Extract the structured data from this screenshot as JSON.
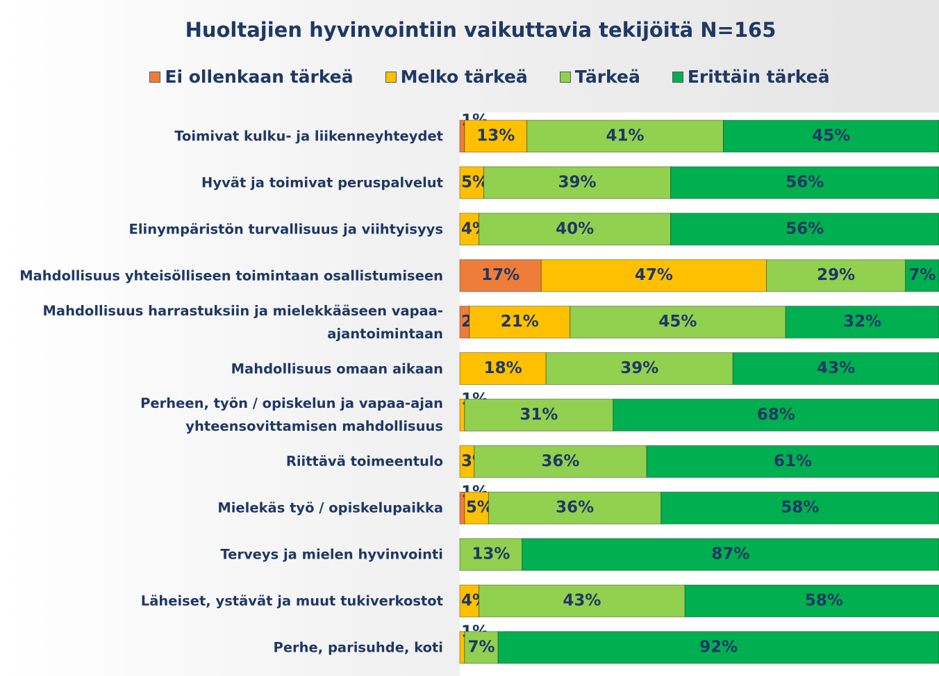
{
  "chart_data": {
    "type": "stacked_barh",
    "title": "Huoltajien hyvinvointiin vaikuttavia tekijöitä N=165",
    "categories": [
      "Toimivat kulku- ja liikenneyhteydet",
      "Hyvät ja toimivat peruspalvelut",
      "Elinympäristön turvallisuus ja viihtyisyys",
      "Mahdollisuus yhteisölliseen toimintaan osallistumiseen",
      "Mahdollisuus harrastuksiin ja mielekkääseen vapaa-ajantoimintaan",
      "Mahdollisuus omaan aikaan",
      "Perheen, työn / opiskelun ja vapaa-ajan yhteensovittamisen mahdollisuus",
      "Riittävä toimeentulo",
      "Mielekäs työ / opiskelupaikka",
      "Terveys ja mielen hyvinvointi",
      "Läheiset, ystävät ja muut tukiverkostot",
      "Perhe, parisuhde, koti"
    ],
    "series": [
      {
        "name": "Ei ollenkaan tärkeä",
        "color": "#ef7d3a",
        "values": [
          1,
          null,
          null,
          17,
          2,
          null,
          null,
          null,
          1,
          null,
          null,
          null
        ],
        "value_labels": [
          "1%",
          null,
          null,
          "17%",
          "2%",
          null,
          null,
          null,
          "1%",
          null,
          null,
          null
        ]
      },
      {
        "name": "Melko tärkeä",
        "color": "#ffc000",
        "values": [
          13,
          5,
          4,
          47,
          21,
          18,
          1,
          3,
          5,
          null,
          4,
          1
        ],
        "value_labels": [
          "13%",
          "5%",
          "4%",
          "47%",
          "21%",
          "18%",
          "1%",
          "3%",
          "5%",
          null,
          "4%",
          "1%"
        ]
      },
      {
        "name": "Tärkeä",
        "color": "#92d050",
        "values": [
          41,
          39,
          40,
          29,
          45,
          39,
          31,
          36,
          36,
          13,
          43,
          7
        ],
        "value_labels": [
          "41%",
          "39%",
          "40%",
          "29%",
          "45%",
          "39%",
          "31%",
          "36%",
          "36%",
          "13%",
          "43%",
          "7%"
        ]
      },
      {
        "name": "Erittäin tärkeä",
        "color": "#00b050",
        "values": [
          45,
          56,
          56,
          7,
          32,
          43,
          68,
          61,
          58,
          87,
          58,
          92
        ],
        "value_labels": [
          "45%",
          "56%",
          "56%",
          "7%",
          "32%",
          "43%",
          "68%",
          "61%",
          "58%",
          "87%",
          "58%",
          "92%"
        ]
      }
    ],
    "xlim": [
      0,
      100
    ],
    "legend": "top"
  }
}
